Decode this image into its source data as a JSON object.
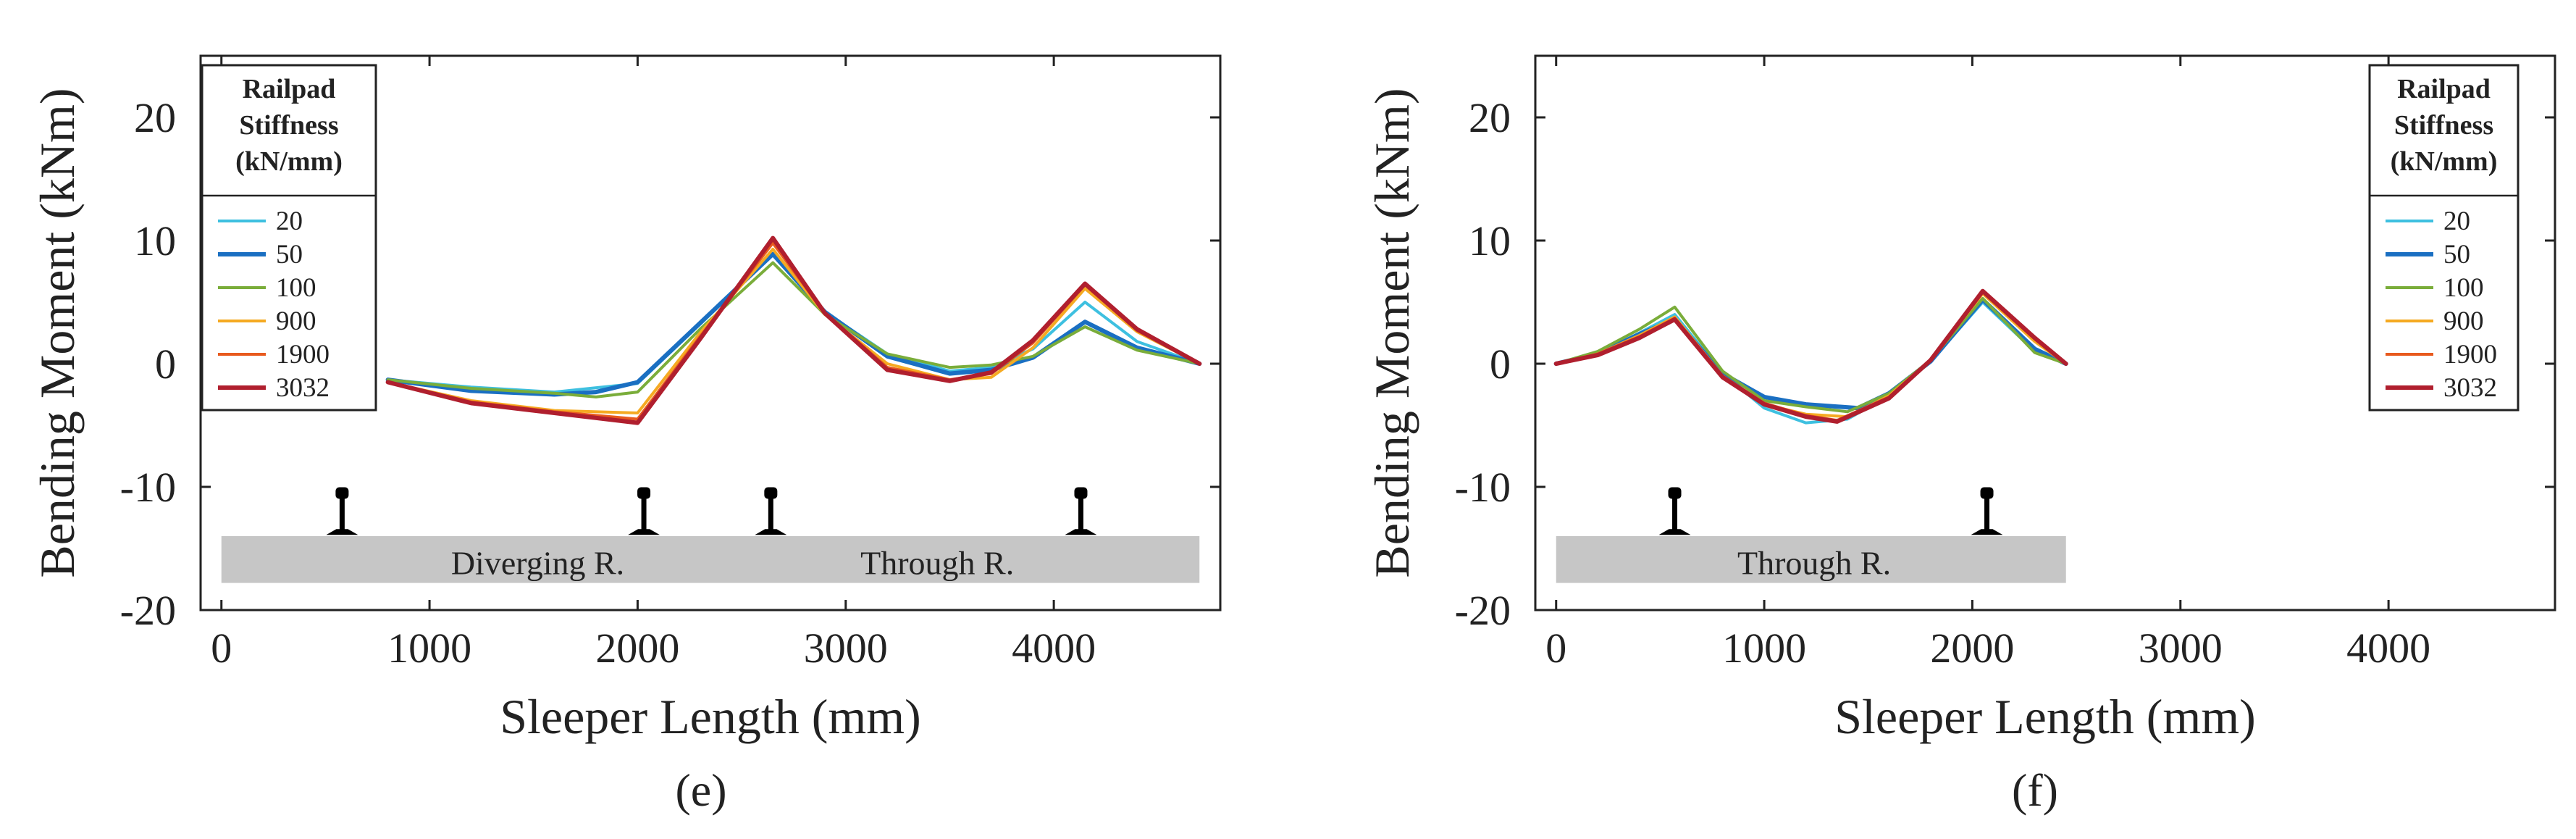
{
  "chart_data": [
    {
      "panel_label": "(e)",
      "type": "line",
      "xlabel": "Sleeper Length (mm)",
      "ylabel": "Bending Moment (kNm)",
      "xlim": [
        -100,
        4800
      ],
      "ylim": [
        -20,
        25
      ],
      "xticks": [
        0,
        1000,
        2000,
        3000,
        4000
      ],
      "yticks": [
        -20,
        -10,
        0,
        10,
        20
      ],
      "grid": false,
      "legend": {
        "title": [
          "Railpad",
          "Stiffness",
          "(kN/mm)"
        ],
        "position": "top-left"
      },
      "series": [
        {
          "name": "20",
          "color": "#3ec0e0",
          "width": 4,
          "x": [
            800,
            1200,
            1600,
            2000,
            2300,
            2650,
            2900,
            3200,
            3500,
            3700,
            3900,
            4150,
            4400,
            4700
          ],
          "y": [
            -1.3,
            -1.9,
            -2.3,
            -1.6,
            3.2,
            8.9,
            4.2,
            0.8,
            -0.6,
            -0.3,
            1.2,
            5.0,
            1.8,
            0
          ]
        },
        {
          "name": "50",
          "color": "#1a6fc2",
          "width": 6,
          "x": [
            800,
            1200,
            1600,
            1800,
            2000,
            2300,
            2650,
            2900,
            3200,
            3500,
            3700,
            3900,
            4150,
            4400,
            4700
          ],
          "y": [
            -1.3,
            -2.2,
            -2.5,
            -2.3,
            -1.5,
            3.3,
            8.9,
            4.2,
            0.6,
            -0.8,
            -0.5,
            0.5,
            3.4,
            1.3,
            0
          ]
        },
        {
          "name": "100",
          "color": "#7aad3a",
          "width": 4,
          "x": [
            800,
            1200,
            1600,
            1800,
            2000,
            2300,
            2650,
            2900,
            3200,
            3500,
            3700,
            3900,
            4150,
            4400,
            4700
          ],
          "y": [
            -1.3,
            -2.0,
            -2.4,
            -2.7,
            -2.3,
            2.8,
            8.2,
            4.0,
            0.8,
            -0.3,
            -0.1,
            0.6,
            3.0,
            1.1,
            0
          ]
        },
        {
          "name": "900",
          "color": "#f5aa22",
          "width": 4,
          "x": [
            800,
            1200,
            1600,
            2000,
            2300,
            2650,
            2900,
            3200,
            3500,
            3700,
            3900,
            4150,
            4400,
            4700
          ],
          "y": [
            -1.5,
            -3.0,
            -3.8,
            -4.0,
            2.5,
            9.3,
            4.0,
            0.0,
            -1.3,
            -1.1,
            1.3,
            6.1,
            2.6,
            0
          ]
        },
        {
          "name": "1900",
          "color": "#e85a1e",
          "width": 4,
          "x": [
            800,
            1200,
            1600,
            2000,
            2300,
            2650,
            2900,
            3200,
            3500,
            3700,
            3900,
            4150,
            4400,
            4700
          ],
          "y": [
            -1.5,
            -3.1,
            -3.9,
            -4.5,
            2.2,
            9.8,
            4.1,
            -0.3,
            -1.3,
            -0.8,
            1.7,
            6.4,
            2.7,
            0
          ]
        },
        {
          "name": "3032",
          "color": "#b01f2e",
          "width": 6,
          "x": [
            800,
            1200,
            1600,
            2000,
            2300,
            2650,
            2900,
            3200,
            3500,
            3700,
            3900,
            4150,
            4400,
            4700
          ],
          "y": [
            -1.5,
            -3.2,
            -4.0,
            -4.8,
            2.0,
            10.2,
            4.1,
            -0.5,
            -1.4,
            -0.7,
            1.9,
            6.5,
            2.8,
            0
          ]
        }
      ],
      "track_bar": {
        "x_start": 0,
        "x_end": 4700,
        "y_top": -14.0,
        "y_bottom": -17.8
      },
      "track_labels": [
        {
          "text": "Diverging R.",
          "x": 1520,
          "y": -16.2
        },
        {
          "text": "Through R.",
          "x": 3440,
          "y": -16.2
        }
      ],
      "rails_x": [
        580,
        2030,
        2640,
        4130
      ]
    },
    {
      "panel_label": "(f)",
      "type": "line",
      "xlabel": "Sleeper Length (mm)",
      "ylabel": "Bending Moment (kNm)",
      "xlim": [
        -100,
        4800
      ],
      "ylim": [
        -20,
        25
      ],
      "xticks": [
        0,
        1000,
        2000,
        3000,
        4000
      ],
      "yticks": [
        -20,
        -10,
        0,
        10,
        20
      ],
      "grid": false,
      "legend": {
        "title": [
          "Railpad",
          "Stiffness",
          "(kN/mm)"
        ],
        "position": "top-right"
      },
      "series": [
        {
          "name": "20",
          "color": "#3ec0e0",
          "width": 4,
          "x": [
            0,
            200,
            400,
            570,
            800,
            1000,
            1200,
            1400,
            1600,
            1800,
            2050,
            2300,
            2450
          ],
          "y": [
            0,
            0.8,
            2.5,
            4.0,
            -0.8,
            -3.6,
            -4.8,
            -4.5,
            -2.6,
            0.2,
            5.0,
            1.0,
            0
          ]
        },
        {
          "name": "50",
          "color": "#1a6fc2",
          "width": 6,
          "x": [
            0,
            200,
            400,
            570,
            800,
            1000,
            1200,
            1450,
            1600,
            1800,
            2050,
            2300,
            2450
          ],
          "y": [
            0,
            0.8,
            2.4,
            3.6,
            -0.8,
            -2.7,
            -3.3,
            -3.6,
            -2.4,
            0.2,
            5.2,
            1.2,
            0
          ]
        },
        {
          "name": "100",
          "color": "#7aad3a",
          "width": 4,
          "x": [
            0,
            200,
            400,
            570,
            800,
            1000,
            1200,
            1400,
            1600,
            1800,
            2050,
            2300,
            2450
          ],
          "y": [
            0,
            1.0,
            2.8,
            4.6,
            -0.6,
            -3.0,
            -3.5,
            -3.9,
            -2.4,
            0.3,
            5.3,
            0.9,
            0
          ]
        },
        {
          "name": "900",
          "color": "#f5aa22",
          "width": 4,
          "x": [
            0,
            200,
            400,
            570,
            800,
            1000,
            1200,
            1400,
            1600,
            1800,
            2050,
            2300,
            2450
          ],
          "y": [
            0,
            0.8,
            2.3,
            3.8,
            -1.0,
            -3.3,
            -4.1,
            -4.3,
            -2.6,
            0.3,
            5.7,
            1.8,
            0
          ]
        },
        {
          "name": "1900",
          "color": "#e85a1e",
          "width": 4,
          "x": [
            0,
            200,
            400,
            570,
            800,
            1000,
            1200,
            1350,
            1600,
            1800,
            2050,
            2300,
            2450
          ],
          "y": [
            0,
            0.8,
            2.2,
            3.7,
            -1.0,
            -3.2,
            -4.2,
            -4.6,
            -2.7,
            0.3,
            5.8,
            2.0,
            0
          ]
        },
        {
          "name": "3032",
          "color": "#b01f2e",
          "width": 6,
          "x": [
            0,
            200,
            400,
            570,
            800,
            1000,
            1200,
            1350,
            1600,
            1800,
            2050,
            2300,
            2450
          ],
          "y": [
            0,
            0.7,
            2.1,
            3.6,
            -1.1,
            -3.3,
            -4.3,
            -4.7,
            -2.8,
            0.3,
            5.9,
            2.1,
            0
          ]
        }
      ],
      "track_bar": {
        "x_start": 0,
        "x_end": 2450,
        "y_top": -14.0,
        "y_bottom": -17.8
      },
      "track_labels": [
        {
          "text": "Through R.",
          "x": 1240,
          "y": -16.2
        }
      ],
      "rails_x": [
        570,
        2070
      ]
    }
  ]
}
